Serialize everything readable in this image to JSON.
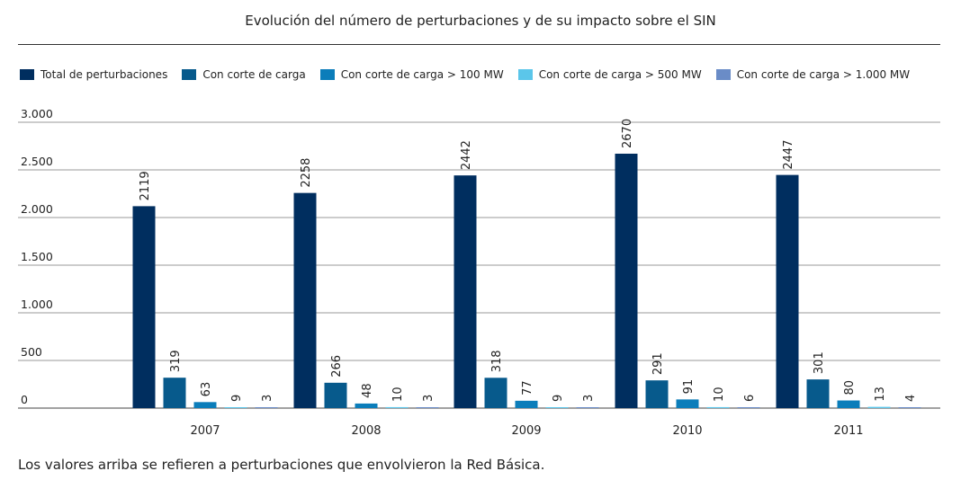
{
  "chart_data": {
    "type": "bar",
    "title": "Evolución del número de perturbaciones y de su impacto sobre el SIN",
    "categories": [
      "2007",
      "2008",
      "2009",
      "2010",
      "2011"
    ],
    "series": [
      {
        "name": "Total de perturbaciones",
        "color": "#002e5f",
        "values": [
          2119,
          2258,
          2442,
          2670,
          2447
        ]
      },
      {
        "name": "Con corte de carga",
        "color": "#075a8c",
        "values": [
          319,
          266,
          318,
          291,
          301
        ]
      },
      {
        "name": "Con corte de carga > 100 MW",
        "color": "#0b7dba",
        "values": [
          63,
          48,
          77,
          91,
          80
        ]
      },
      {
        "name": "Con corte de carga > 500 MW",
        "color": "#5bc6ea",
        "values": [
          9,
          10,
          9,
          10,
          13
        ]
      },
      {
        "name": "Con corte de carga > 1.000 MW",
        "color": "#6a8cc7",
        "values": [
          3,
          3,
          3,
          6,
          4
        ]
      }
    ],
    "ylim": [
      0,
      3000
    ],
    "yticks": [
      {
        "value": 0,
        "label": "0"
      },
      {
        "value": 500,
        "label": "500"
      },
      {
        "value": 1000,
        "label": "1.000"
      },
      {
        "value": 1500,
        "label": "1.500"
      },
      {
        "value": 2000,
        "label": "2.000"
      },
      {
        "value": 2500,
        "label": "2.500"
      },
      {
        "value": 3000,
        "label": "3.000"
      }
    ],
    "grid": true,
    "legend_position": "top"
  },
  "footnote": "Los valores arriba se refieren a perturbaciones que envolvieron la Red Básica."
}
